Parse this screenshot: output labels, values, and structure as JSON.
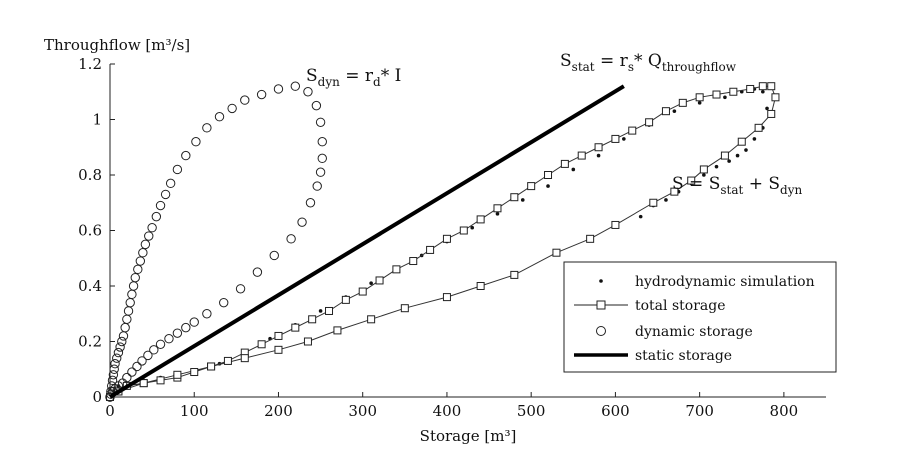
{
  "chart_data": {
    "type": "scatter",
    "xlabel": "Storage [m³]",
    "ylabel": "Throughflow [m³/s]",
    "xlim": [
      0,
      850
    ],
    "ylim": [
      0,
      1.2
    ],
    "xticks": [
      0,
      100,
      200,
      300,
      400,
      500,
      600,
      700,
      800
    ],
    "yticks": [
      0,
      0.2,
      0.4,
      0.6,
      0.8,
      1,
      1.2
    ],
    "xtick_labels": [
      "0",
      "100",
      "200",
      "300",
      "400",
      "500",
      "600",
      "700",
      "800"
    ],
    "ytick_labels": [
      "0",
      "0.2",
      "0.4",
      "0.6",
      "0.8",
      "1",
      "1.2"
    ],
    "grid": false,
    "legend_position": "bottom-right",
    "annotations": {
      "sdyn": {
        "main": "S",
        "sub": "dyn",
        "rest": " = r",
        "sub2": "d",
        "rest2": "* I"
      },
      "sstat": {
        "main": "S",
        "sub": "stat",
        "rest": " = r",
        "sub2": "s",
        "rest2": "* Q",
        "sub3": "throughflow"
      },
      "stotal": {
        "main": "S = S",
        "sub": "stat",
        "rest": " + S",
        "sub2": "dyn"
      }
    },
    "series": [
      {
        "name": "hydrodynamic simulation",
        "marker": "dot",
        "x": [
          2,
          5,
          10,
          20,
          40,
          60,
          80,
          100,
          130,
          160,
          190,
          220,
          250,
          280,
          310,
          340,
          370,
          400,
          430,
          460,
          490,
          520,
          550,
          580,
          610,
          640,
          670,
          700,
          730,
          750,
          765,
          775,
          780,
          775,
          765,
          755,
          745,
          735,
          720,
          705,
          690,
          675,
          660,
          645,
          630
        ],
        "y": [
          0.0,
          0.02,
          0.04,
          0.05,
          0.06,
          0.07,
          0.08,
          0.09,
          0.12,
          0.16,
          0.21,
          0.26,
          0.31,
          0.36,
          0.41,
          0.46,
          0.51,
          0.56,
          0.61,
          0.66,
          0.71,
          0.76,
          0.82,
          0.87,
          0.93,
          0.98,
          1.03,
          1.06,
          1.08,
          1.1,
          1.11,
          1.1,
          1.04,
          0.97,
          0.93,
          0.89,
          0.87,
          0.85,
          0.83,
          0.8,
          0.77,
          0.74,
          0.71,
          0.69,
          0.65
        ]
      },
      {
        "name": "total storage",
        "marker": "square",
        "x": [
          0,
          10,
          20,
          40,
          60,
          80,
          100,
          120,
          140,
          160,
          180,
          200,
          220,
          240,
          260,
          280,
          300,
          320,
          340,
          360,
          380,
          400,
          420,
          440,
          460,
          480,
          500,
          520,
          540,
          560,
          580,
          600,
          620,
          640,
          660,
          680,
          700,
          720,
          740,
          760,
          775,
          785,
          790,
          785,
          770,
          750,
          730,
          705,
          690,
          670,
          645,
          600,
          570,
          530,
          480,
          440,
          400,
          350,
          310,
          270,
          235,
          200,
          160,
          120,
          80,
          40,
          10,
          0
        ],
        "y": [
          0.0,
          0.02,
          0.04,
          0.05,
          0.06,
          0.07,
          0.09,
          0.11,
          0.13,
          0.16,
          0.19,
          0.22,
          0.25,
          0.28,
          0.31,
          0.35,
          0.38,
          0.42,
          0.46,
          0.49,
          0.53,
          0.57,
          0.6,
          0.64,
          0.68,
          0.72,
          0.76,
          0.8,
          0.84,
          0.87,
          0.9,
          0.93,
          0.96,
          0.99,
          1.03,
          1.06,
          1.08,
          1.09,
          1.1,
          1.11,
          1.12,
          1.12,
          1.08,
          1.02,
          0.97,
          0.92,
          0.87,
          0.82,
          0.78,
          0.74,
          0.7,
          0.62,
          0.57,
          0.52,
          0.44,
          0.4,
          0.36,
          0.32,
          0.28,
          0.24,
          0.2,
          0.17,
          0.14,
          0.11,
          0.08,
          0.05,
          0.02,
          0.0
        ]
      },
      {
        "name": "dynamic storage",
        "marker": "circle",
        "x": [
          0,
          1,
          2,
          3,
          4,
          5,
          6,
          8,
          10,
          12,
          14,
          16,
          18,
          20,
          22,
          24,
          26,
          28,
          30,
          33,
          36,
          39,
          42,
          46,
          50,
          55,
          60,
          66,
          72,
          80,
          90,
          102,
          115,
          130,
          145,
          160,
          180,
          200,
          220,
          235,
          245,
          250,
          252,
          252,
          250,
          246,
          238,
          228,
          215,
          195,
          175,
          155,
          135,
          115,
          100,
          90,
          80,
          70,
          60,
          52,
          45,
          38,
          32,
          26,
          20,
          15,
          10,
          6,
          3,
          1,
          0
        ],
        "y": [
          0.0,
          0.02,
          0.04,
          0.06,
          0.08,
          0.1,
          0.12,
          0.14,
          0.16,
          0.18,
          0.2,
          0.22,
          0.25,
          0.28,
          0.31,
          0.34,
          0.37,
          0.4,
          0.43,
          0.46,
          0.49,
          0.52,
          0.55,
          0.58,
          0.61,
          0.65,
          0.69,
          0.73,
          0.77,
          0.82,
          0.87,
          0.92,
          0.97,
          1.01,
          1.04,
          1.07,
          1.09,
          1.11,
          1.12,
          1.1,
          1.05,
          0.99,
          0.92,
          0.86,
          0.81,
          0.76,
          0.7,
          0.63,
          0.57,
          0.51,
          0.45,
          0.39,
          0.34,
          0.3,
          0.27,
          0.25,
          0.23,
          0.21,
          0.19,
          0.17,
          0.15,
          0.13,
          0.11,
          0.09,
          0.07,
          0.05,
          0.04,
          0.03,
          0.02,
          0.01,
          0.0
        ]
      },
      {
        "name": "static storage",
        "marker": "line",
        "x": [
          0,
          610
        ],
        "y": [
          0,
          1.12
        ]
      }
    ]
  }
}
